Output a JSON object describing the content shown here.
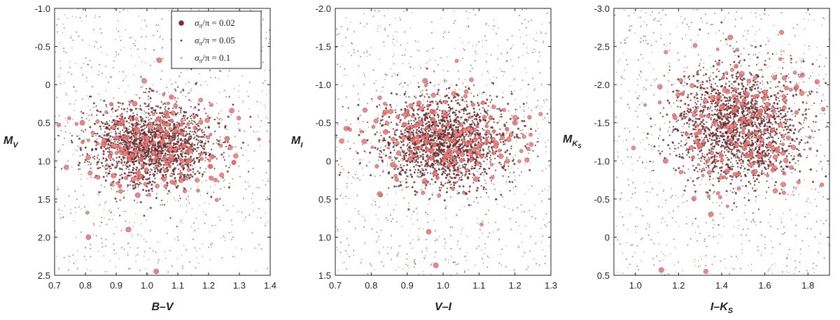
{
  "legend": {
    "entries": [
      {
        "sigma": "σ",
        "sub": "π",
        "rest": "/π = 0.02",
        "marker": "large"
      },
      {
        "sigma": "σ",
        "sub": "π",
        "rest": "/π = 0.05",
        "marker": "medium"
      },
      {
        "sigma": "σ",
        "sub": "π",
        "rest": "/π = 0.1",
        "marker": "small"
      }
    ]
  },
  "colors": {
    "large_fill": "#e87a7a",
    "large_stroke": "#9a2a2a",
    "dot": "#6b2b2b",
    "frame": "#222222"
  },
  "chart_data": [
    {
      "type": "scatter",
      "xlabel_main": "B–V",
      "xlabel_sub": "",
      "ylabel_main": "M",
      "ylabel_sub": "V",
      "ylabel_subsub": "",
      "xlim": [
        0.7,
        1.4
      ],
      "ylim": [
        2.5,
        -1.0
      ],
      "xticks": [
        "0.7",
        "0.8",
        "0.9",
        "1.0",
        "1.1",
        "1.2",
        "1.3",
        "1.4"
      ],
      "yticks": [
        "-1.0",
        "-0.5",
        "0",
        "0.5",
        "1.0",
        "1.5",
        "2.0",
        "2.5"
      ],
      "legend_position": "top-right",
      "cluster": {
        "center": [
          1.02,
          0.8
        ],
        "spread": [
          0.1,
          0.28
        ]
      },
      "highlighted_points": [
        [
          0.79,
          0.5
        ],
        [
          0.96,
          0.25
        ],
        [
          1.04,
          -0.32
        ],
        [
          0.92,
          0.48
        ],
        [
          0.97,
          0.6
        ],
        [
          1.0,
          0.7
        ],
        [
          1.05,
          0.75
        ],
        [
          1.12,
          0.8
        ],
        [
          0.93,
          0.9
        ],
        [
          1.08,
          0.95
        ],
        [
          0.97,
          1.45
        ],
        [
          0.94,
          1.9
        ],
        [
          0.81,
          2.0
        ],
        [
          1.03,
          2.45
        ],
        [
          1.26,
          0.71
        ]
      ]
    },
    {
      "type": "scatter",
      "xlabel_main": "V–I",
      "xlabel_sub": "",
      "ylabel_main": "M",
      "ylabel_sub": "I",
      "ylabel_subsub": "",
      "xlim": [
        0.7,
        1.3
      ],
      "ylim": [
        1.5,
        -2.0
      ],
      "xticks": [
        "0.7",
        "0.8",
        "0.9",
        "1.0",
        "1.1",
        "1.2",
        "1.3"
      ],
      "yticks": [
        "-2.0",
        "-1.5",
        "-1.0",
        "-0.5",
        "0",
        "0.5",
        "1.0",
        "1.5"
      ],
      "legend_position": "none",
      "cluster": {
        "center": [
          1.0,
          -0.25
        ],
        "spread": [
          0.09,
          0.3
        ]
      },
      "highlighted_points": [
        [
          0.84,
          -0.38
        ],
        [
          0.95,
          -1.05
        ],
        [
          1.06,
          -0.4
        ],
        [
          0.93,
          -0.25
        ],
        [
          1.01,
          -0.3
        ],
        [
          1.1,
          -0.2
        ],
        [
          0.86,
          0.05
        ],
        [
          0.96,
          0.93
        ],
        [
          0.98,
          1.37
        ],
        [
          1.2,
          -0.5
        ]
      ]
    },
    {
      "type": "scatter",
      "xlabel_main": "I–K",
      "xlabel_sub": "S",
      "ylabel_main": "M",
      "ylabel_sub": "K",
      "ylabel_subsub": "S",
      "xlim": [
        0.9,
        1.9
      ],
      "ylim": [
        0.5,
        -3.0
      ],
      "xticks": [
        "1.0",
        "1.2",
        "1.4",
        "1.6",
        "1.8"
      ],
      "yticks": [
        "-3.0",
        "-2.5",
        "-2.0",
        "-1.5",
        "-1.0",
        "-0.5",
        "0",
        "0.5"
      ],
      "legend_position": "none",
      "cluster": {
        "center": [
          1.48,
          -1.45
        ],
        "spread": [
          0.15,
          0.38
        ]
      },
      "highlighted_points": [
        [
          1.14,
          -1.0
        ],
        [
          1.12,
          0.43
        ],
        [
          1.35,
          -0.3
        ],
        [
          1.44,
          -2.62
        ],
        [
          1.58,
          -1.65
        ],
        [
          1.5,
          -1.55
        ],
        [
          1.4,
          -1.7
        ],
        [
          1.6,
          -1.9
        ],
        [
          1.3,
          -1.2
        ]
      ]
    }
  ]
}
